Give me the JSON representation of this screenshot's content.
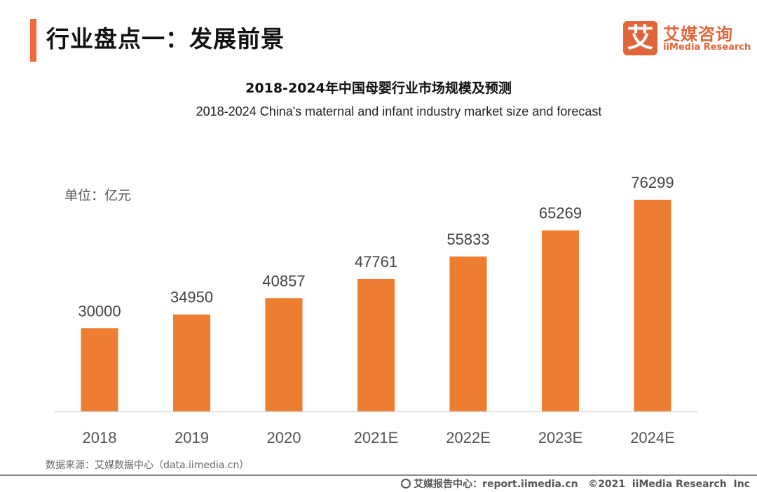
{
  "header": {
    "title": "行业盘点一：发展前景",
    "accent_color": "#f26a3a"
  },
  "logo": {
    "mark": "艾",
    "name_cn": "艾媒咨询",
    "name_en": "iiMedia Research",
    "color": "#e0653a"
  },
  "unit_label": "单位：亿元",
  "source": "数据来源：艾媒数据中心（data.iimedia.cn）",
  "footer": {
    "icon": "globe-icon",
    "text": "艾媒报告中心：report.iimedia.cn   ©2021  iiMedia Research  Inc"
  },
  "chart_data": {
    "type": "bar",
    "title": "2018-2024年中国母婴行业市场规模及预测",
    "subtitle": "2018-2024 China's maternal and infant industry market size and forecast",
    "xlabel": "",
    "ylabel": "单位：亿元",
    "categories": [
      "2018",
      "2019",
      "2020",
      "2021E",
      "2022E",
      "2023E",
      "2024E"
    ],
    "values": [
      30000,
      34950,
      40857,
      47761,
      55833,
      65269,
      76299
    ],
    "ylim": [
      0,
      76299
    ],
    "grid": false,
    "legend": "none",
    "bar_color": "#ed7d31",
    "data_labels": true
  }
}
